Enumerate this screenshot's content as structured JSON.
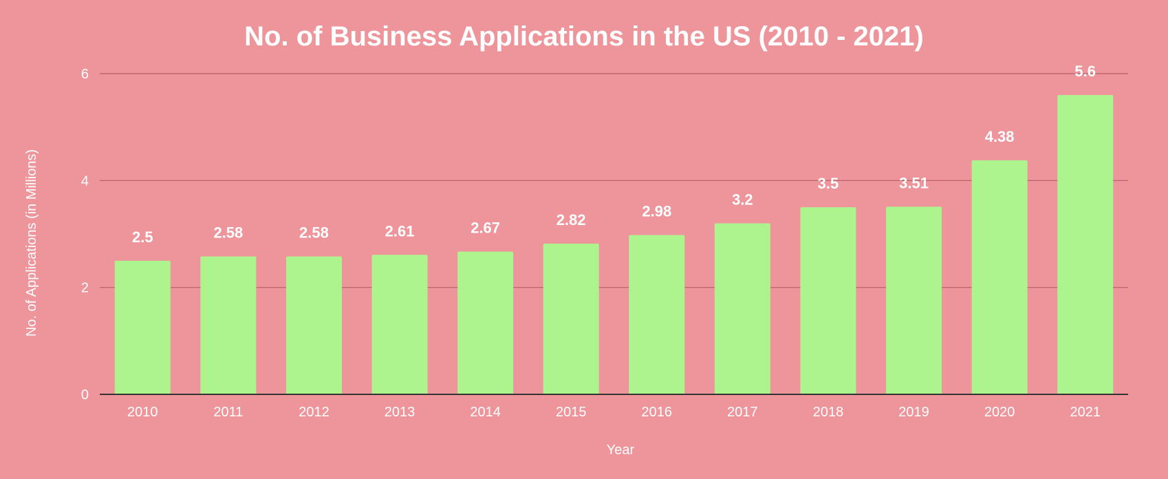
{
  "chart_data": {
    "type": "bar",
    "title": "No. of Business Applications in the US (2010 - 2021)",
    "xlabel": "Year",
    "ylabel": "No. of Applications (in Millions)",
    "categories": [
      "2010",
      "2011",
      "2012",
      "2013",
      "2014",
      "2015",
      "2016",
      "2017",
      "2018",
      "2019",
      "2020",
      "2021"
    ],
    "values": [
      2.5,
      2.58,
      2.58,
      2.61,
      2.67,
      2.82,
      2.98,
      3.2,
      3.5,
      3.51,
      4.38,
      5.6
    ],
    "data_labels": [
      "2.5",
      "2.58",
      "2.58",
      "2.61",
      "2.67",
      "2.82",
      "2.98",
      "3.2",
      "3.5",
      "3.51",
      "4.38",
      "5.6"
    ],
    "ylim": [
      0,
      6
    ],
    "yticks": [
      0,
      2,
      4,
      6
    ],
    "grid": true,
    "legend": "none",
    "colors": {
      "background": "#ed959b",
      "bar": "#adf48f",
      "grid": "#b35f66",
      "axis": "#333333",
      "text": "#ffffff"
    }
  }
}
